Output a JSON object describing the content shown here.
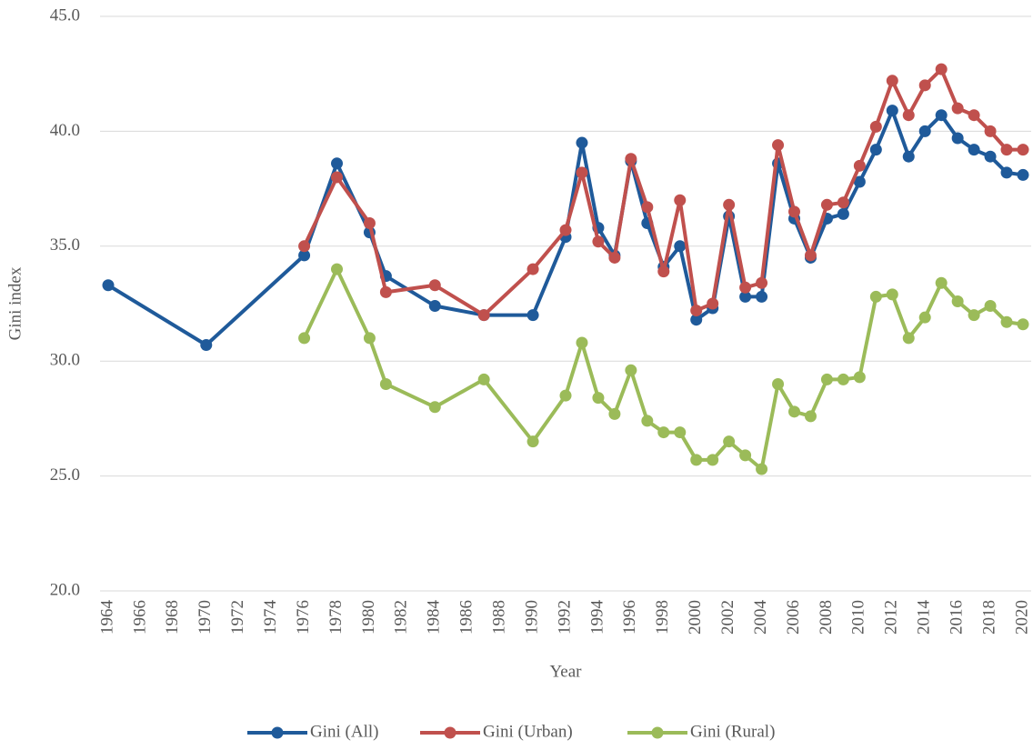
{
  "chart_data": {
    "type": "line",
    "ylabel": "Gini index",
    "xlabel": "Year",
    "x": [
      1964,
      1970,
      1976,
      1978,
      1980,
      1981,
      1984,
      1987,
      1990,
      1992,
      1993,
      1994,
      1995,
      1996,
      1997,
      1998,
      1999,
      2000,
      2001,
      2002,
      2003,
      2004,
      2005,
      2006,
      2007,
      2008,
      2009,
      2010,
      2011,
      2012,
      2013,
      2014,
      2015,
      2016,
      2017,
      2018,
      2019,
      2020
    ],
    "series": [
      {
        "name": "Gini (All)",
        "color": "#1f5a9a",
        "values": [
          33.3,
          30.7,
          34.6,
          38.6,
          35.6,
          33.7,
          32.4,
          32.0,
          32.0,
          35.4,
          39.5,
          35.8,
          34.6,
          38.7,
          36.0,
          34.1,
          35.0,
          31.8,
          32.3,
          36.3,
          32.8,
          32.8,
          38.6,
          36.2,
          34.5,
          36.2,
          36.4,
          37.8,
          39.2,
          40.9,
          38.9,
          40.0,
          40.7,
          39.7,
          39.2,
          38.9,
          38.2,
          38.1
        ]
      },
      {
        "name": "Gini (Urban)",
        "color": "#c0504d",
        "values": [
          null,
          null,
          35.0,
          38.0,
          36.0,
          33.0,
          33.3,
          32.0,
          34.0,
          35.7,
          38.2,
          35.2,
          34.5,
          38.8,
          36.7,
          33.9,
          37.0,
          32.2,
          32.5,
          36.8,
          33.2,
          33.4,
          39.4,
          36.5,
          34.6,
          36.8,
          36.9,
          38.5,
          40.2,
          42.2,
          40.7,
          42.0,
          42.7,
          41.0,
          40.7,
          40.0,
          39.2,
          39.2
        ]
      },
      {
        "name": "Gini (Rural)",
        "color": "#9bbb59",
        "values": [
          null,
          null,
          31.0,
          34.0,
          31.0,
          29.0,
          28.0,
          29.2,
          26.5,
          28.5,
          30.8,
          28.4,
          27.7,
          29.6,
          27.4,
          26.9,
          26.9,
          25.7,
          25.7,
          26.5,
          25.9,
          25.3,
          29.0,
          27.8,
          27.6,
          29.2,
          29.2,
          29.3,
          32.8,
          32.9,
          31.0,
          31.9,
          33.4,
          32.6,
          32.0,
          32.4,
          31.7,
          31.6
        ]
      }
    ],
    "xlim": [
      1964,
      2020
    ],
    "xticks": [
      1964,
      1966,
      1968,
      1970,
      1972,
      1974,
      1976,
      1978,
      1980,
      1982,
      1984,
      1986,
      1988,
      1990,
      1992,
      1994,
      1996,
      1998,
      2000,
      2002,
      2004,
      2006,
      2008,
      2010,
      2012,
      2014,
      2016,
      2018,
      2020
    ],
    "ylim": [
      20,
      45
    ],
    "yticks": [
      {
        "value": 20,
        "label": "20.0"
      },
      {
        "value": 25,
        "label": "25.0"
      },
      {
        "value": 30,
        "label": "30.0"
      },
      {
        "value": 35,
        "label": "35.0"
      },
      {
        "value": 40,
        "label": "40.0"
      },
      {
        "value": 45,
        "label": "45.0"
      }
    ],
    "grid": true,
    "legend": "bottom"
  }
}
